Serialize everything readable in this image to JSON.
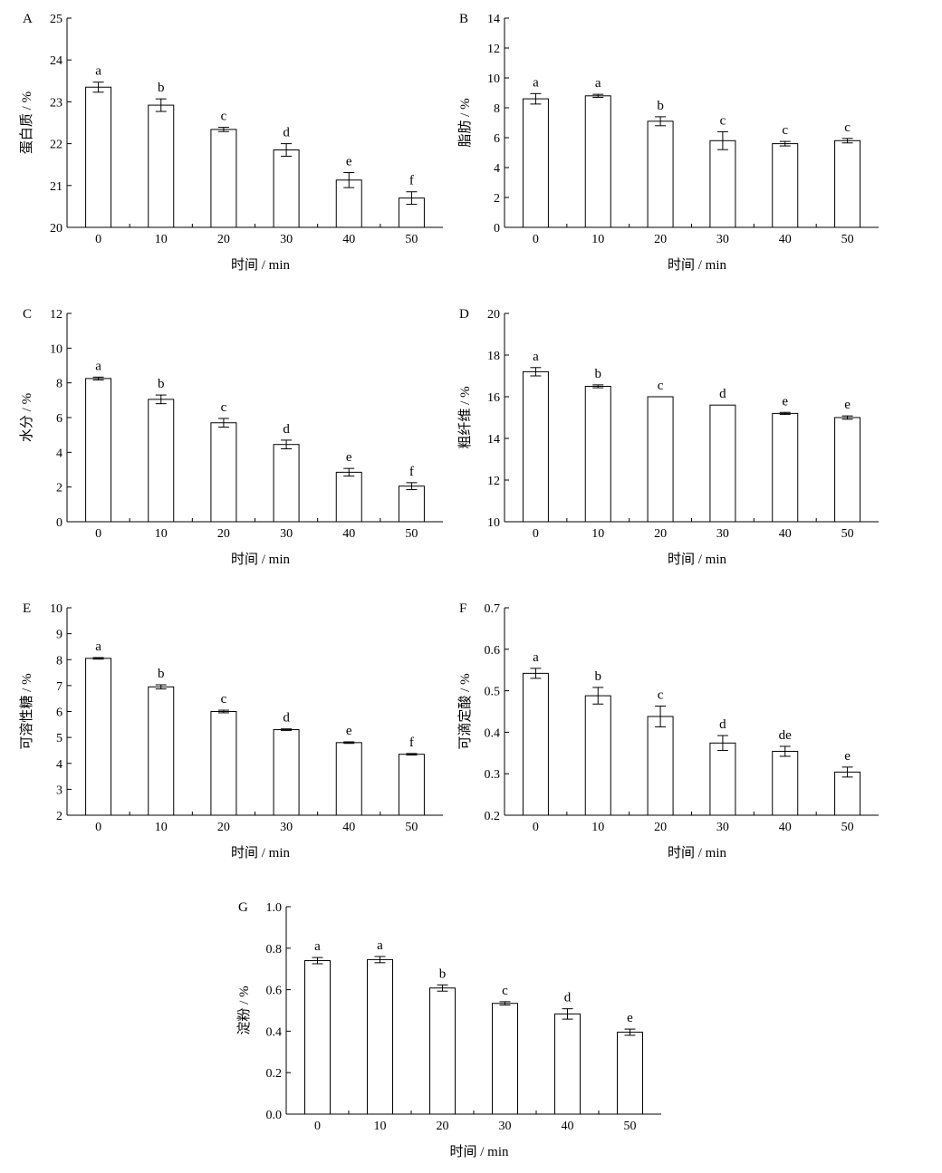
{
  "chart_data": [
    {
      "panel": "A",
      "type": "bar",
      "categories": [
        "0",
        "10",
        "20",
        "30",
        "40",
        "50"
      ],
      "values": [
        23.35,
        22.92,
        22.34,
        21.85,
        21.13,
        20.7
      ],
      "errors": [
        0.12,
        0.15,
        0.05,
        0.15,
        0.18,
        0.15
      ],
      "letters": [
        "a",
        "b",
        "c",
        "d",
        "e",
        "f"
      ],
      "xlabel": "时间 / min",
      "ylabel": "蛋白质 / %",
      "ylim": [
        20,
        25
      ],
      "yticks": [
        "20",
        "21",
        "22",
        "23",
        "24",
        "25"
      ]
    },
    {
      "panel": "B",
      "type": "bar",
      "categories": [
        "0",
        "10",
        "20",
        "30",
        "40",
        "50"
      ],
      "values": [
        8.6,
        8.8,
        7.1,
        5.8,
        5.6,
        5.8
      ],
      "errors": [
        0.35,
        0.1,
        0.3,
        0.6,
        0.15,
        0.15
      ],
      "letters": [
        "a",
        "a",
        "b",
        "c",
        "c",
        "c"
      ],
      "xlabel": "时间 / min",
      "ylabel": "脂肪 / %",
      "ylim": [
        0,
        14
      ],
      "yticks": [
        "0",
        "2",
        "4",
        "6",
        "8",
        "10",
        "12",
        "14"
      ]
    },
    {
      "panel": "C",
      "type": "bar",
      "categories": [
        "0",
        "10",
        "20",
        "30",
        "40",
        "50"
      ],
      "values": [
        8.25,
        7.05,
        5.7,
        4.45,
        2.85,
        2.05
      ],
      "errors": [
        0.08,
        0.25,
        0.25,
        0.25,
        0.22,
        0.2
      ],
      "letters": [
        "a",
        "b",
        "c",
        "d",
        "e",
        "f"
      ],
      "xlabel": "时间 / min",
      "ylabel": "水分 / %",
      "ylim": [
        0,
        12
      ],
      "yticks": [
        "0",
        "2",
        "4",
        "6",
        "8",
        "10",
        "12"
      ]
    },
    {
      "panel": "D",
      "type": "bar",
      "categories": [
        "0",
        "10",
        "20",
        "30",
        "40",
        "50"
      ],
      "values": [
        17.2,
        16.5,
        16.0,
        15.6,
        15.2,
        15.0
      ],
      "errors": [
        0.2,
        0.07,
        0,
        0,
        0.05,
        0.08
      ],
      "letters": [
        "a",
        "b",
        "c",
        "d",
        "e",
        "e"
      ],
      "xlabel": "时间 / min",
      "ylabel": "粗纤维 / %",
      "ylim": [
        10,
        20
      ],
      "yticks": [
        "10",
        "12",
        "14",
        "16",
        "18",
        "20"
      ]
    },
    {
      "panel": "E",
      "type": "bar",
      "categories": [
        "0",
        "10",
        "20",
        "30",
        "40",
        "50"
      ],
      "values": [
        8.05,
        6.95,
        6.0,
        5.3,
        4.8,
        4.35
      ],
      "errors": [
        0.03,
        0.08,
        0.05,
        0.03,
        0.03,
        0.03
      ],
      "letters": [
        "a",
        "b",
        "c",
        "d",
        "e",
        "f"
      ],
      "xlabel": "时间 / min",
      "ylabel": "可溶性糖 / %",
      "ylim": [
        2,
        10
      ],
      "yticks": [
        "2",
        "3",
        "4",
        "5",
        "6",
        "7",
        "8",
        "9",
        "10"
      ]
    },
    {
      "panel": "F",
      "type": "bar",
      "categories": [
        "0",
        "10",
        "20",
        "30",
        "40",
        "50"
      ],
      "values": [
        0.542,
        0.488,
        0.438,
        0.374,
        0.354,
        0.304
      ],
      "errors": [
        0.012,
        0.02,
        0.025,
        0.018,
        0.012,
        0.012
      ],
      "letters": [
        "a",
        "b",
        "c",
        "d",
        "de",
        "e"
      ],
      "xlabel": "时间 / min",
      "ylabel": "可滴定酸 / %",
      "ylim": [
        0.2,
        0.7
      ],
      "yticks": [
        "0.2",
        "0.3",
        "0.4",
        "0.5",
        "0.6",
        "0.7"
      ]
    },
    {
      "panel": "G",
      "type": "bar",
      "categories": [
        "0",
        "10",
        "20",
        "30",
        "40",
        "50"
      ],
      "values": [
        0.74,
        0.745,
        0.608,
        0.534,
        0.483,
        0.395
      ],
      "errors": [
        0.015,
        0.015,
        0.015,
        0.008,
        0.025,
        0.015
      ],
      "letters": [
        "a",
        "a",
        "b",
        "c",
        "d",
        "e"
      ],
      "xlabel": "时间 / min",
      "ylabel": "淀粉 / %",
      "ylim": [
        0,
        1.0
      ],
      "yticks": [
        "0.0",
        "0.2",
        "0.4",
        "0.6",
        "0.8",
        "1.0"
      ]
    }
  ]
}
